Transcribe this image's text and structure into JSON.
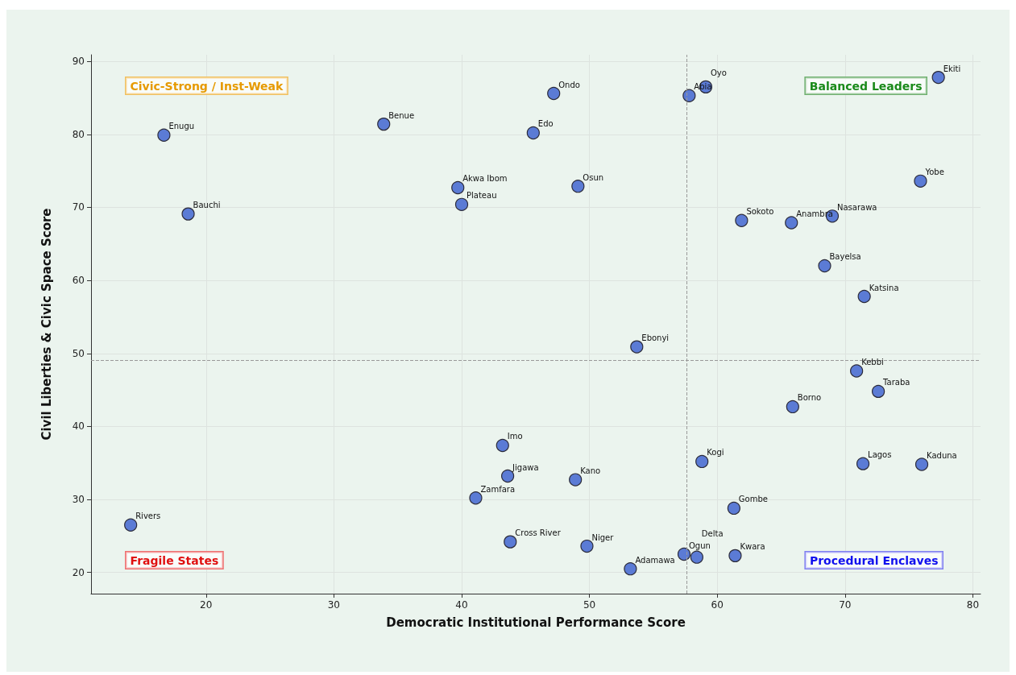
{
  "chart_data": {
    "type": "scatter",
    "xlabel": "Democratic Institutional Performance Score",
    "ylabel": "Civil Liberties & Civic Space Score",
    "x": [
      16.7,
      18.6,
      14.1,
      33.9,
      39.7,
      40.0,
      47.2,
      45.6,
      49.1,
      57.8,
      59.1,
      77.3,
      75.9,
      61.9,
      65.8,
      69.0,
      68.4,
      71.5,
      53.7,
      70.9,
      72.6,
      65.9,
      43.2,
      43.6,
      48.9,
      41.1,
      58.8,
      71.4,
      76.0,
      61.3,
      43.8,
      49.8,
      57.4,
      58.4,
      61.4,
      53.2
    ],
    "series": [
      {
        "color": "#5b7bd5",
        "values": [
          79.9,
          69.1,
          26.5,
          81.4,
          72.7,
          70.4,
          85.6,
          80.2,
          72.9,
          85.3,
          86.5,
          87.8,
          73.6,
          68.2,
          67.9,
          68.8,
          62.0,
          57.8,
          50.9,
          47.6,
          44.8,
          42.7,
          37.4,
          33.2,
          32.7,
          30.2,
          35.2,
          34.9,
          34.8,
          28.8,
          24.2,
          23.6,
          22.5,
          22.1,
          22.3,
          20.5
        ]
      }
    ],
    "marker": "circle",
    "grid": true,
    "xlim": [
      11,
      80.6
    ],
    "xticks": [
      20,
      30,
      40,
      50,
      60,
      70,
      80
    ],
    "ylim": [
      17.1,
      90.9
    ],
    "yticks": [
      20,
      30,
      40,
      50,
      60,
      70,
      80,
      90
    ],
    "ref_lines": [
      {
        "axis": "x",
        "value": 57.6,
        "color": "#999999",
        "line_style": "dashed"
      },
      {
        "axis": "y",
        "value": 49.1,
        "color": "#999999",
        "line_style": "dashed"
      }
    ],
    "annotations": [
      "Civic-Strong / Inst-Weak",
      "Balanced Leaders",
      "Fragile States",
      "Procedural Enclaves",
      {
        "text": "Enugu",
        "x": 16.7,
        "y": 79.9
      },
      {
        "text": "Bauchi",
        "x": 18.6,
        "y": 69.1
      },
      {
        "text": "Rivers",
        "x": 14.1,
        "y": 26.5
      },
      {
        "text": "Benue",
        "x": 33.9,
        "y": 81.4
      },
      {
        "text": "Akwa Ibom",
        "x": 39.7,
        "y": 72.7
      },
      {
        "text": "Plateau",
        "x": 40.0,
        "y": 70.4
      },
      {
        "text": "Ondo",
        "x": 47.2,
        "y": 85.6
      },
      {
        "text": "Edo",
        "x": 45.6,
        "y": 80.2
      },
      {
        "text": "Osun",
        "x": 49.1,
        "y": 72.9
      },
      {
        "text": "Abia",
        "x": 57.8,
        "y": 85.3
      },
      {
        "text": "Oyo",
        "x": 59.1,
        "y": 86.5
      },
      {
        "text": "Ekiti",
        "x": 77.3,
        "y": 87.8
      },
      {
        "text": "Yobe",
        "x": 75.9,
        "y": 73.6
      },
      {
        "text": "Sokoto",
        "x": 61.9,
        "y": 68.2
      },
      {
        "text": "Anambra",
        "x": 65.8,
        "y": 67.9
      },
      {
        "text": "Nasarawa",
        "x": 69.0,
        "y": 68.8
      },
      {
        "text": "Bayelsa",
        "x": 68.4,
        "y": 62.0
      },
      {
        "text": "Katsina",
        "x": 71.5,
        "y": 57.8
      },
      {
        "text": "Ebonyi",
        "x": 53.7,
        "y": 50.9
      },
      {
        "text": "Kebbi",
        "x": 70.9,
        "y": 47.6
      },
      {
        "text": "Taraba",
        "x": 72.6,
        "y": 44.8
      },
      {
        "text": "Borno",
        "x": 65.9,
        "y": 42.7
      },
      {
        "text": "Imo",
        "x": 43.2,
        "y": 37.4
      },
      {
        "text": "Jigawa",
        "x": 43.6,
        "y": 33.2
      },
      {
        "text": "Kano",
        "x": 48.9,
        "y": 32.7
      },
      {
        "text": "Zamfara",
        "x": 41.1,
        "y": 30.2
      },
      {
        "text": "Kogi",
        "x": 58.8,
        "y": 35.2
      },
      {
        "text": "Lagos",
        "x": 71.4,
        "y": 34.9
      },
      {
        "text": "Kaduna",
        "x": 76.0,
        "y": 34.8
      },
      {
        "text": "Gombe",
        "x": 61.3,
        "y": 28.8
      },
      {
        "text": "Cross River",
        "x": 43.8,
        "y": 24.2
      },
      {
        "text": "Niger",
        "x": 49.8,
        "y": 23.6
      },
      {
        "text": "Ogun",
        "x": 57.4,
        "y": 22.5
      },
      {
        "text": "Delta",
        "x": 58.4,
        "y": 22.1
      },
      {
        "text": "Kwara",
        "x": 61.4,
        "y": 22.3
      },
      {
        "text": "Adamawa",
        "x": 53.2,
        "y": 20.5
      }
    ]
  }
}
